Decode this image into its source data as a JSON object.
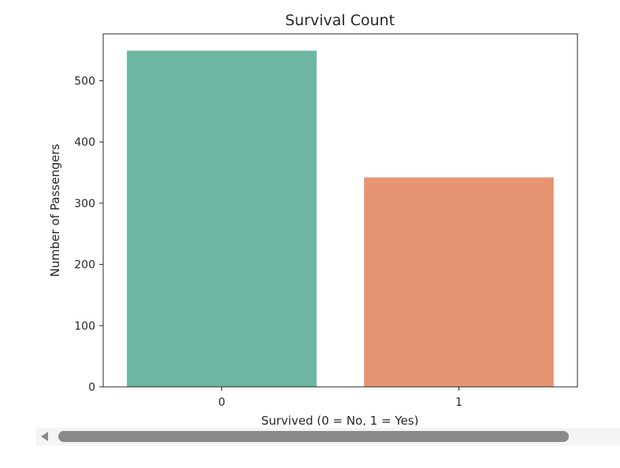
{
  "chart_data": {
    "type": "bar",
    "title": "Survival Count",
    "xlabel": "Survived (0 = No, 1 = Yes)",
    "ylabel": "Number of Passengers",
    "categories": [
      "0",
      "1"
    ],
    "values": [
      549,
      342
    ],
    "colors": [
      "#6db6a2",
      "#e69572"
    ],
    "ylim": [
      0,
      576.45
    ],
    "yticks": [
      0,
      100,
      200,
      300,
      400,
      500
    ],
    "grid": false,
    "legend": "none"
  },
  "scrollbar": {
    "orientation": "horizontal",
    "left_arrow_icon": "triangle-left-icon",
    "thumb_color": "#8a8a8a",
    "track_color": "#f4f4f4"
  }
}
